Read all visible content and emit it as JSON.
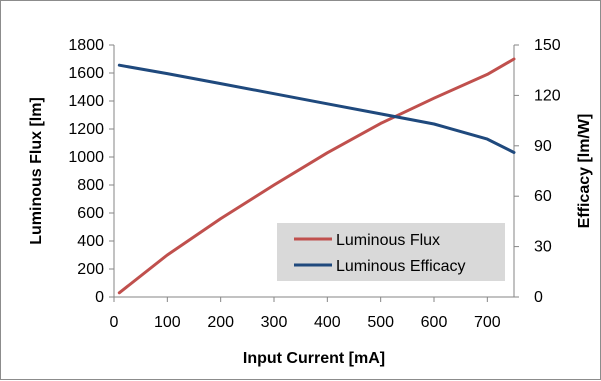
{
  "chart_data": {
    "type": "line",
    "xlabel": "Input Current [mA]",
    "ylabel": "Luminous Flux [lm]",
    "y2label": "Efficacy [lm/W]",
    "xlim": [
      0,
      750
    ],
    "ylim": [
      0,
      1800
    ],
    "y2lim": [
      0,
      150
    ],
    "x_ticks": [
      0,
      100,
      200,
      300,
      400,
      500,
      600,
      700
    ],
    "y_ticks": [
      0,
      200,
      400,
      600,
      800,
      1000,
      1200,
      1400,
      1600,
      1800
    ],
    "y2_ticks": [
      0,
      30,
      60,
      90,
      120,
      150
    ],
    "grid": false,
    "legend_position": "bottom-right",
    "colors": {
      "flux": "#c0504d",
      "efficacy": "#1f497d"
    },
    "series": [
      {
        "name": "Luminous Flux",
        "axis": "left",
        "x": [
          10,
          100,
          200,
          300,
          400,
          500,
          600,
          700,
          750
        ],
        "y": [
          30,
          300,
          560,
          800,
          1030,
          1240,
          1420,
          1590,
          1700
        ]
      },
      {
        "name": "Luminous Efficacy",
        "axis": "right",
        "x": [
          10,
          100,
          200,
          300,
          400,
          500,
          600,
          700,
          750
        ],
        "y": [
          138,
          133,
          127,
          121,
          115,
          109,
          103,
          94,
          86
        ]
      }
    ]
  }
}
